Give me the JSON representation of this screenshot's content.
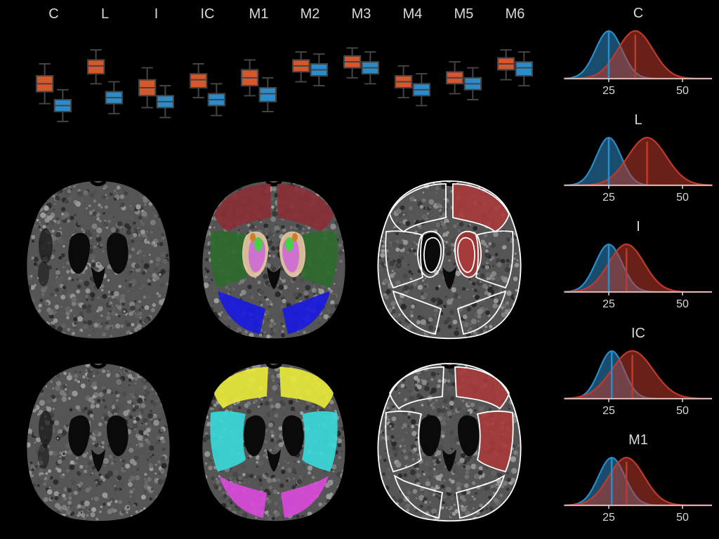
{
  "background_color": "#000000",
  "text_color": "#d9d9d9",
  "axis_color": "#d9d9d9",
  "boxplot": {
    "labels": [
      "C",
      "L",
      "I",
      "IC",
      "M1",
      "M2",
      "M3",
      "M4",
      "M5",
      "M6"
    ],
    "title_fontsize": 20,
    "colors": {
      "series_a": "#d6572b",
      "series_b": "#2c8cc9",
      "edge": "#444444"
    },
    "y_range": [
      0,
      60
    ],
    "series_a": [
      {
        "q1": 28,
        "med": 32,
        "q3": 36,
        "lo": 22,
        "hi": 42
      },
      {
        "q1": 37,
        "med": 41,
        "q3": 44,
        "lo": 32,
        "hi": 49
      },
      {
        "q1": 26,
        "med": 30,
        "q3": 34,
        "lo": 20,
        "hi": 40
      },
      {
        "q1": 30,
        "med": 34,
        "q3": 37,
        "lo": 25,
        "hi": 42
      },
      {
        "q1": 31,
        "med": 35,
        "q3": 39,
        "lo": 26,
        "hi": 44
      },
      {
        "q1": 38,
        "med": 41,
        "q3": 44,
        "lo": 33,
        "hi": 48
      },
      {
        "q1": 40,
        "med": 43,
        "q3": 46,
        "lo": 35,
        "hi": 50
      },
      {
        "q1": 30,
        "med": 33,
        "q3": 36,
        "lo": 25,
        "hi": 41
      },
      {
        "q1": 32,
        "med": 35,
        "q3": 38,
        "lo": 27,
        "hi": 43
      },
      {
        "q1": 39,
        "med": 42,
        "q3": 45,
        "lo": 34,
        "hi": 49
      }
    ],
    "series_b": [
      {
        "q1": 18,
        "med": 21,
        "q3": 24,
        "lo": 13,
        "hi": 29
      },
      {
        "q1": 22,
        "med": 25,
        "q3": 28,
        "lo": 17,
        "hi": 33
      },
      {
        "q1": 20,
        "med": 23,
        "q3": 26,
        "lo": 15,
        "hi": 31
      },
      {
        "q1": 21,
        "med": 24,
        "q3": 27,
        "lo": 16,
        "hi": 32
      },
      {
        "q1": 23,
        "med": 27,
        "q3": 30,
        "lo": 18,
        "hi": 35
      },
      {
        "q1": 36,
        "med": 39,
        "q3": 42,
        "lo": 31,
        "hi": 47
      },
      {
        "q1": 37,
        "med": 40,
        "q3": 43,
        "lo": 32,
        "hi": 48
      },
      {
        "q1": 26,
        "med": 29,
        "q3": 32,
        "lo": 21,
        "hi": 37
      },
      {
        "q1": 29,
        "med": 32,
        "q3": 35,
        "lo": 24,
        "hi": 40
      },
      {
        "q1": 36,
        "med": 40,
        "q3": 43,
        "lo": 31,
        "hi": 48
      }
    ]
  },
  "distributions": {
    "panels": [
      "C",
      "L",
      "I",
      "IC",
      "M1"
    ],
    "x_ticks": [
      25,
      50
    ],
    "x_range": [
      10,
      60
    ],
    "colors": {
      "a": "#2c8cc9",
      "b": "#c03a2b"
    },
    "fill_opacity": 0.55,
    "line_width": 2.2,
    "data": {
      "C": {
        "a_mean": 25,
        "a_sd": 4.5,
        "b_mean": 34,
        "b_sd": 6
      },
      "L": {
        "a_mean": 25,
        "a_sd": 4.2,
        "b_mean": 38,
        "b_sd": 6.5
      },
      "I": {
        "a_mean": 25,
        "a_sd": 4.5,
        "b_mean": 31,
        "b_sd": 6
      },
      "IC": {
        "a_mean": 26,
        "a_sd": 4.2,
        "b_mean": 33,
        "b_sd": 7
      },
      "M1": {
        "a_mean": 26,
        "a_sd": 4.5,
        "b_mean": 31,
        "b_sd": 6
      }
    }
  },
  "brain_colors": {
    "row1": {
      "frontal": "#8a2e36",
      "mid": "#2d6b2d",
      "occipital": "#1a1ae0",
      "basal_outer": "#e8c9a3",
      "basal_green": "#4de04d",
      "basal_pink": "#e07ae0",
      "basal_orange": "#e08a2a",
      "highlight": "#a73a3a"
    },
    "row2": {
      "m1": "#e8e83a",
      "m2": "#3ad9d9",
      "m3": "#d94ad9",
      "highlight": "#a73a3a"
    },
    "outline": "#ffffff"
  }
}
